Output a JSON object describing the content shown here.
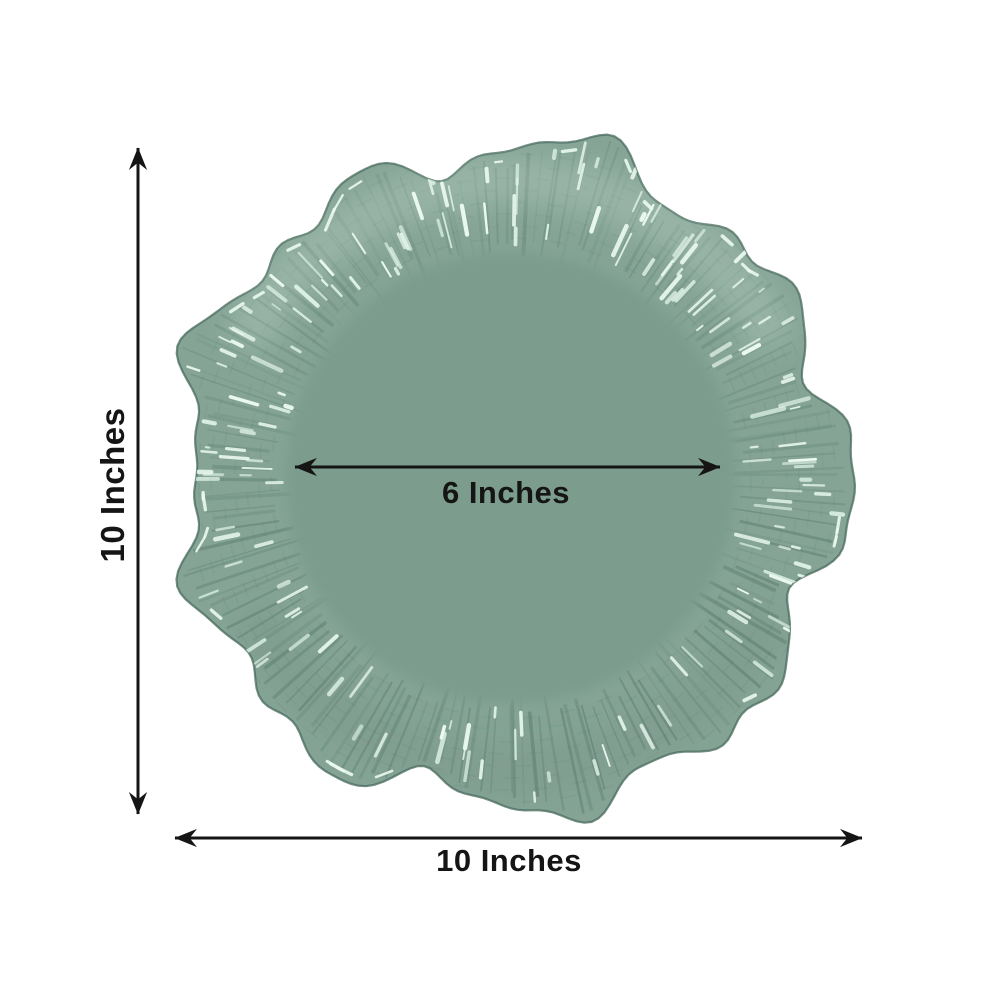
{
  "diagram": {
    "kind": "product-dimension-diagram",
    "subject": "round reef ruffled-rim charger plate"
  },
  "dimensions": {
    "outer_height": {
      "label": "10 Inches"
    },
    "outer_width": {
      "label": "10 Inches"
    },
    "inner_diameter": {
      "label": "6 Inches"
    }
  },
  "icons": {
    "vertical_arrow": "double-headed-arrow-vertical",
    "bottom_arrow": "double-headed-arrow-horizontal",
    "inner_arrow": "double-headed-arrow-horizontal"
  },
  "colors": {
    "background": "#FFFFFF",
    "dimension_lines": "#151515",
    "plate_base": "#7C9C8E",
    "plate_rim_mid": "#85A496",
    "plate_shadow": "#4F7265",
    "plate_edge": "#476A5C",
    "plate_highlight": "#EAF9F1",
    "plate_highlight_soft": "#DDF1E6"
  }
}
